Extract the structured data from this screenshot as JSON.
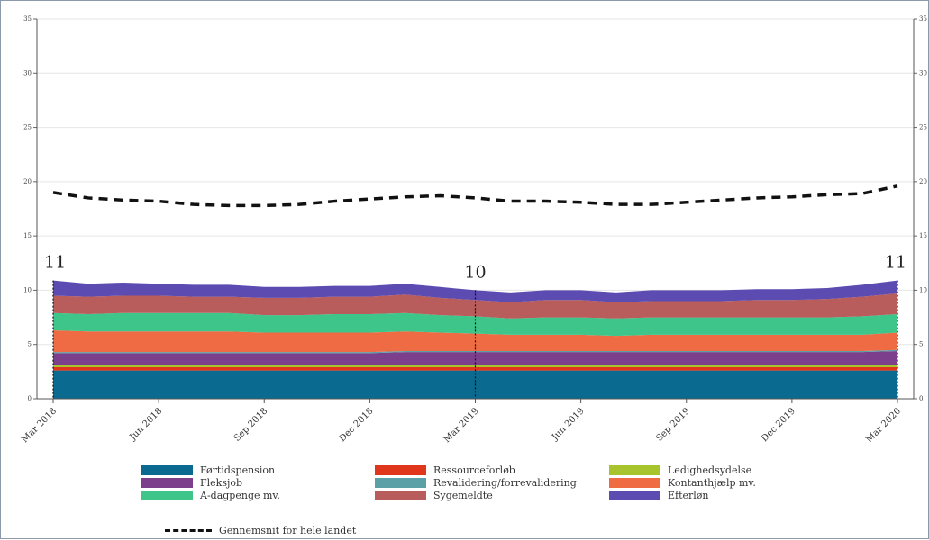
{
  "chart_data": {
    "type": "area",
    "title": "",
    "xlabel": "",
    "ylabel": "",
    "ylim": [
      0,
      35
    ],
    "yticks": [
      "0",
      "5",
      "10",
      "15",
      "20",
      "25",
      "30",
      "35"
    ],
    "x": [
      "Mar 2018",
      "Apr 2018",
      "May 2018",
      "Jun 2018",
      "Jul 2018",
      "Aug 2018",
      "Sep 2018",
      "Oct 2018",
      "Nov 2018",
      "Dec 2018",
      "Jan 2019",
      "Feb 2019",
      "Mar 2019",
      "Apr 2019",
      "May 2019",
      "Jun 2019",
      "Jul 2019",
      "Aug 2019",
      "Sep 2019",
      "Oct 2019",
      "Nov 2019",
      "Dec 2019",
      "Jan 2020",
      "Feb 2020",
      "Mar 2020"
    ],
    "xtick_labels": [
      "Mar 2018",
      "Jun 2018",
      "Sep 2018",
      "Dec 2018",
      "Mar 2019",
      "Jun 2019",
      "Sep 2019",
      "Dec 2019",
      "Mar 2020"
    ],
    "stacked": true,
    "series": [
      {
        "name": "Førtidspension",
        "color": "#0b6a8f",
        "values": [
          2.6,
          2.6,
          2.6,
          2.6,
          2.6,
          2.6,
          2.6,
          2.6,
          2.6,
          2.6,
          2.6,
          2.6,
          2.6,
          2.6,
          2.6,
          2.6,
          2.6,
          2.6,
          2.6,
          2.6,
          2.6,
          2.6,
          2.6,
          2.6,
          2.6
        ]
      },
      {
        "name": "Ressourceforløb",
        "color": "#e0361b",
        "values": [
          0.3,
          0.3,
          0.3,
          0.3,
          0.3,
          0.3,
          0.3,
          0.3,
          0.3,
          0.3,
          0.3,
          0.3,
          0.3,
          0.3,
          0.3,
          0.3,
          0.3,
          0.3,
          0.3,
          0.3,
          0.3,
          0.3,
          0.3,
          0.3,
          0.3
        ]
      },
      {
        "name": "Ledighedsydelse",
        "color": "#a8c42c",
        "values": [
          0.2,
          0.2,
          0.2,
          0.2,
          0.2,
          0.2,
          0.2,
          0.2,
          0.2,
          0.2,
          0.2,
          0.2,
          0.2,
          0.2,
          0.2,
          0.2,
          0.2,
          0.2,
          0.2,
          0.2,
          0.2,
          0.2,
          0.2,
          0.2,
          0.2
        ]
      },
      {
        "name": "Fleksjob",
        "color": "#7b3f8c",
        "values": [
          1.1,
          1.1,
          1.1,
          1.1,
          1.1,
          1.1,
          1.1,
          1.1,
          1.1,
          1.1,
          1.2,
          1.2,
          1.2,
          1.2,
          1.2,
          1.2,
          1.2,
          1.2,
          1.2,
          1.2,
          1.2,
          1.2,
          1.2,
          1.2,
          1.3
        ]
      },
      {
        "name": "Revalidering/forrevalidering",
        "color": "#5aa0a6",
        "values": [
          0.1,
          0.1,
          0.1,
          0.1,
          0.1,
          0.1,
          0.1,
          0.1,
          0.1,
          0.1,
          0.1,
          0.1,
          0.1,
          0.1,
          0.1,
          0.1,
          0.1,
          0.1,
          0.1,
          0.1,
          0.1,
          0.1,
          0.1,
          0.1,
          0.1
        ]
      },
      {
        "name": "Kontanthjælp mv.",
        "color": "#ee6b43",
        "values": [
          2.0,
          1.9,
          1.9,
          1.9,
          1.9,
          1.9,
          1.8,
          1.8,
          1.8,
          1.8,
          1.8,
          1.7,
          1.6,
          1.5,
          1.5,
          1.5,
          1.4,
          1.5,
          1.5,
          1.5,
          1.5,
          1.5,
          1.5,
          1.5,
          1.6
        ]
      },
      {
        "name": "A-dagpenge mv.",
        "color": "#3dc58a",
        "values": [
          1.6,
          1.6,
          1.7,
          1.7,
          1.7,
          1.7,
          1.6,
          1.6,
          1.7,
          1.7,
          1.7,
          1.6,
          1.6,
          1.5,
          1.6,
          1.6,
          1.6,
          1.6,
          1.6,
          1.6,
          1.6,
          1.6,
          1.6,
          1.7,
          1.7
        ]
      },
      {
        "name": "Sygemeldte",
        "color": "#b85c5c",
        "values": [
          1.6,
          1.6,
          1.6,
          1.6,
          1.5,
          1.5,
          1.6,
          1.6,
          1.6,
          1.6,
          1.7,
          1.6,
          1.5,
          1.5,
          1.6,
          1.6,
          1.5,
          1.5,
          1.5,
          1.5,
          1.6,
          1.6,
          1.7,
          1.8,
          1.9
        ]
      },
      {
        "name": "Efterløn",
        "color": "#5c4bb0",
        "values": [
          1.4,
          1.2,
          1.2,
          1.1,
          1.1,
          1.1,
          1.0,
          1.0,
          1.0,
          1.0,
          1.0,
          1.0,
          0.9,
          0.9,
          0.9,
          0.9,
          0.9,
          1.0,
          1.0,
          1.0,
          1.0,
          1.0,
          1.0,
          1.1,
          1.2
        ]
      }
    ],
    "average_line": {
      "name": "Gennemsnit for hele landet",
      "values": [
        19.0,
        18.5,
        18.3,
        18.2,
        17.9,
        17.8,
        17.8,
        17.9,
        18.2,
        18.4,
        18.6,
        18.7,
        18.5,
        18.2,
        18.2,
        18.1,
        17.9,
        17.9,
        18.1,
        18.3,
        18.5,
        18.6,
        18.8,
        18.9,
        19.6
      ]
    },
    "annotations": [
      {
        "x": "Mar 2018",
        "label": "11"
      },
      {
        "x": "Mar 2019",
        "label": "10"
      },
      {
        "x": "Mar 2020",
        "label": "11"
      }
    ],
    "legend_placement": "bottom",
    "grid": true
  }
}
